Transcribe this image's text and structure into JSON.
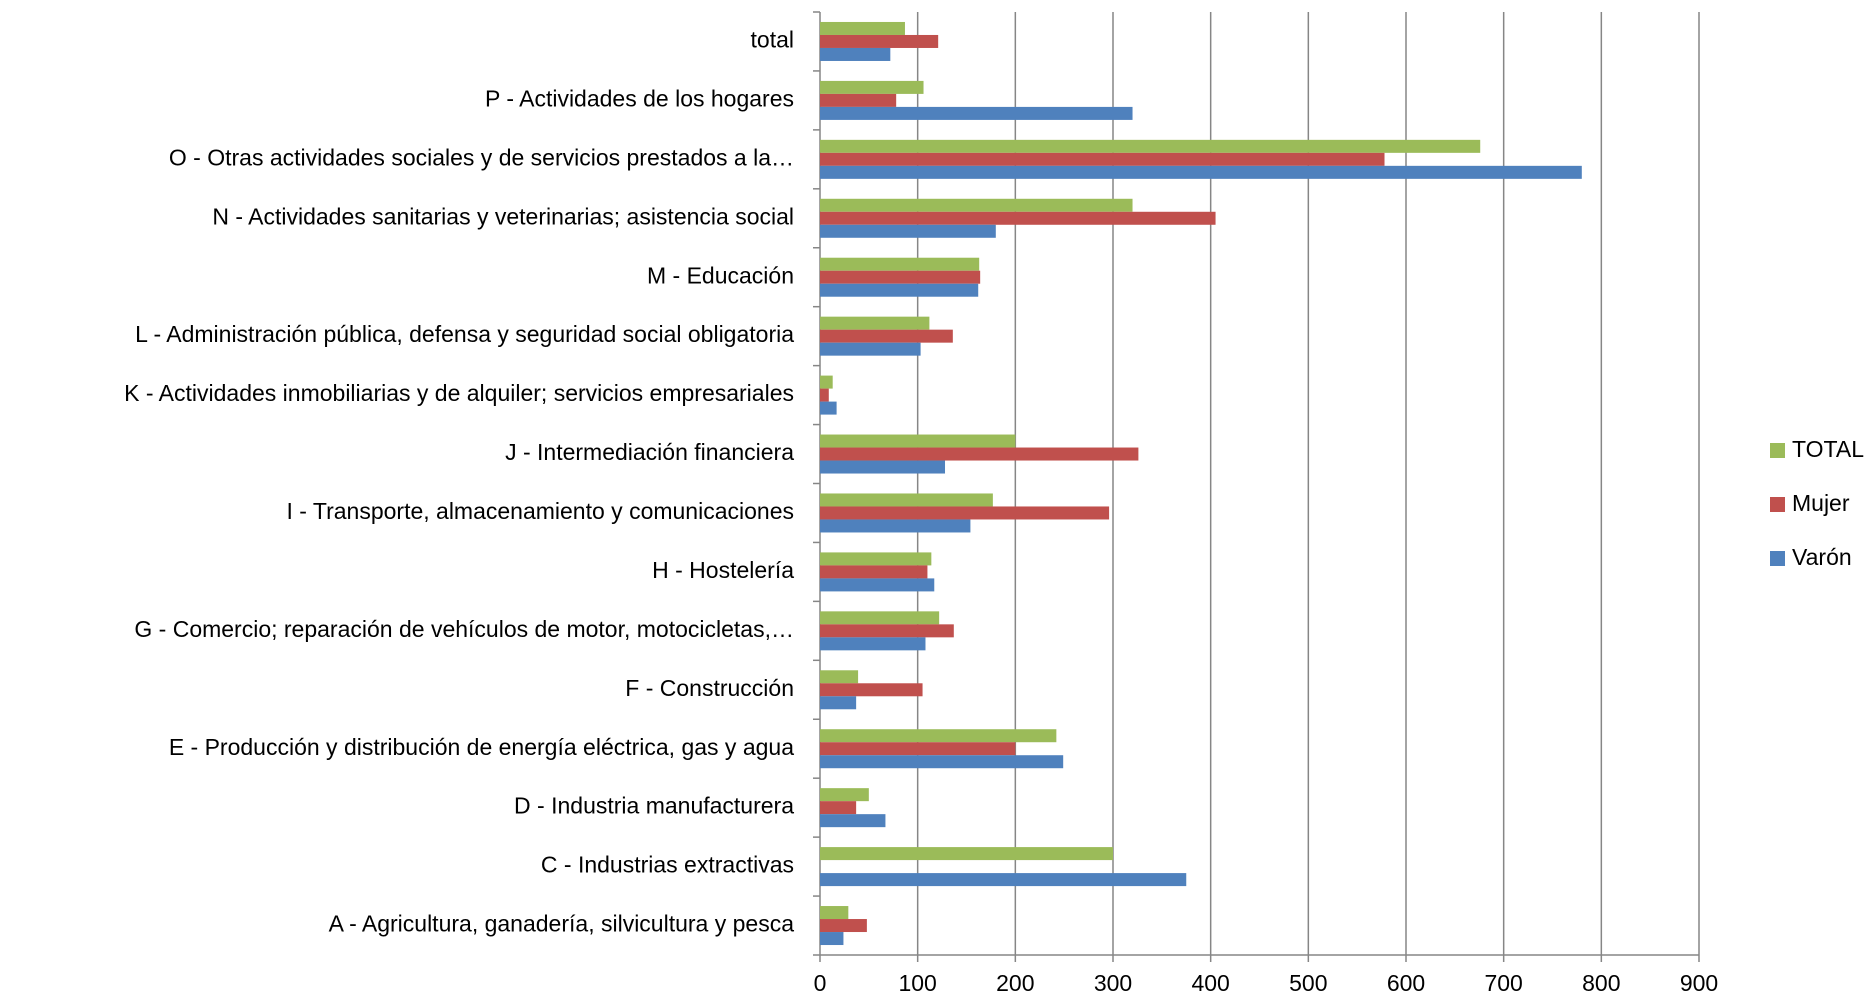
{
  "chart_data": {
    "type": "hbar",
    "categories": [
      "A - Agricultura, ganadería, silvicultura y pesca",
      "C - Industrias extractivas",
      "D - Industria manufacturera",
      "E - Producción y distribución de energía eléctrica, gas y agua",
      "F - Construcción",
      "G - Comercio; reparación de vehículos de motor, motocicletas,…",
      "H - Hostelería",
      "I - Transporte, almacenamiento y comunicaciones",
      "J - Intermediación financiera",
      "K - Actividades inmobiliarias y de alquiler; servicios empresariales",
      "L - Administración pública, defensa y seguridad social obligatoria",
      "M - Educación",
      "N - Actividades sanitarias y veterinarias; asistencia social",
      "O - Otras actividades sociales y de servicios prestados a la…",
      "P - Actividades de los hogares",
      "total"
    ],
    "series": [
      {
        "name": "TOTAL",
        "color": "#9bbb59",
        "values": [
          29,
          300,
          50,
          242,
          39,
          122,
          114,
          177,
          200,
          13,
          112,
          163,
          320,
          676,
          106,
          87
        ]
      },
      {
        "name": "Mujer",
        "color": "#c0504d",
        "values": [
          48,
          0,
          37,
          200,
          105,
          137,
          110,
          296,
          326,
          9,
          136,
          164,
          405,
          578,
          78,
          121
        ]
      },
      {
        "name": "Varón",
        "color": "#4f81bd",
        "values": [
          24,
          375,
          67,
          249,
          37,
          108,
          117,
          154,
          128,
          17,
          103,
          162,
          180,
          780,
          320,
          72
        ]
      }
    ],
    "xlim": [
      0,
      900
    ],
    "xticks": [
      0,
      100,
      200,
      300,
      400,
      500,
      600,
      700,
      800,
      900
    ],
    "grid": true,
    "legend": "right"
  }
}
